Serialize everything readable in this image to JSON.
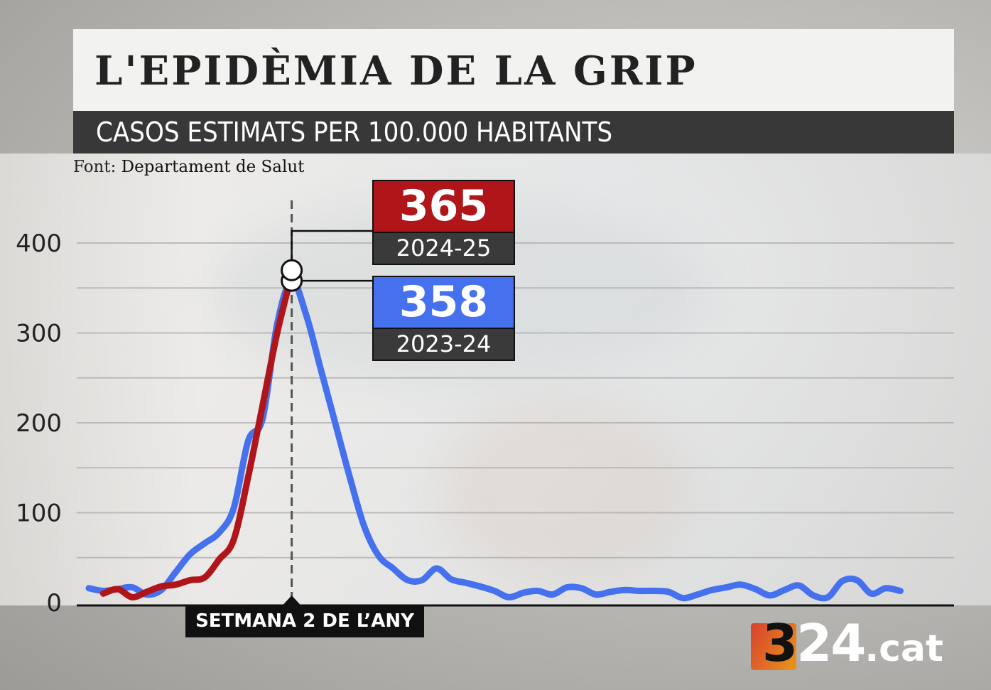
{
  "header": {
    "title": "L'EPIDÈMIA DE LA GRIP",
    "subtitle": "CASOS ESTIMATS PER 100.000 HABITANTS",
    "source_label": "Font:",
    "source_value": "Departament de Salut"
  },
  "logo": {
    "text_3": "3",
    "text_24": "24",
    "text_cat": ".cat"
  },
  "chart_data": {
    "type": "line",
    "title": "L'EPIDÈMIA DE LA GRIP",
    "ylabel": "Casos estimats per 100.000 habitants",
    "ylim": [
      0,
      400
    ],
    "yticks": [
      0,
      100,
      200,
      300,
      400
    ],
    "ytick_labels": [
      "0",
      "100",
      "200",
      "300",
      "400"
    ],
    "grid": true,
    "x_unit": "week index of season",
    "highlight": {
      "x": 14,
      "label": "SETMANA 2 DE L’ANY"
    },
    "series": [
      {
        "name": "2024-25",
        "color": "#b0151a",
        "peak": 365,
        "peak_label": "365",
        "x": [
          1,
          2,
          3,
          4,
          5,
          6,
          7,
          8,
          9,
          10,
          11,
          12,
          13,
          14
        ],
        "y": [
          10,
          15,
          6,
          12,
          18,
          20,
          25,
          28,
          48,
          70,
          140,
          220,
          300,
          365
        ]
      },
      {
        "name": "2023-24",
        "color": "#4570ee",
        "peak": 358,
        "peak_label": "358",
        "x": [
          0,
          1,
          2,
          3,
          4,
          5,
          6,
          7,
          8,
          9,
          10,
          11,
          12,
          13,
          14,
          15,
          16,
          17,
          18,
          19,
          20,
          21,
          22,
          23,
          24,
          25,
          26,
          27,
          28,
          29,
          30,
          31,
          32,
          33,
          34,
          35,
          36,
          37,
          38,
          39,
          40,
          41,
          42,
          43,
          44,
          45,
          46,
          47,
          48,
          49,
          50,
          51,
          52,
          53,
          54,
          55,
          56
        ],
        "y": [
          16,
          13,
          15,
          17,
          9,
          14,
          34,
          54,
          66,
          78,
          105,
          180,
          205,
          310,
          358,
          320,
          260,
          200,
          140,
          85,
          52,
          38,
          25,
          25,
          38,
          26,
          22,
          18,
          13,
          6,
          11,
          13,
          9,
          17,
          16,
          9,
          12,
          14,
          13,
          13,
          12,
          5,
          9,
          14,
          17,
          20,
          15,
          8,
          14,
          19,
          8,
          6,
          24,
          25,
          10,
          16,
          13
        ]
      }
    ]
  }
}
